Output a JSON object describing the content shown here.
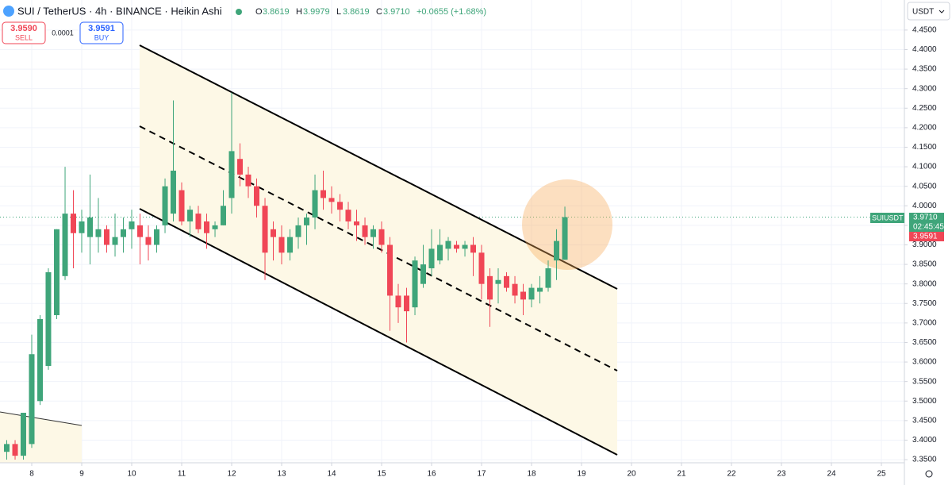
{
  "chart_data": {
    "type": "candlestick",
    "x": [
      7.5,
      7.667,
      7.833,
      8,
      8.167,
      8.333,
      8.5,
      8.667,
      8.833,
      9,
      9.167,
      9.333,
      9.5,
      9.667,
      9.833,
      10,
      10.167,
      10.333,
      10.5,
      10.667,
      10.833,
      11,
      11.167,
      11.333,
      11.5,
      11.667,
      11.833,
      12,
      12.167,
      12.333,
      12.5,
      12.667,
      12.833,
      13,
      13.167,
      13.333,
      13.5,
      13.667,
      13.833,
      14,
      14.167,
      14.333,
      14.5,
      14.667,
      14.833,
      15,
      15.167,
      15.333,
      15.5,
      15.667,
      15.833,
      16,
      16.167,
      16.333,
      16.5,
      16.667,
      16.833,
      17,
      17.167,
      17.333,
      17.5,
      17.667,
      17.833,
      18,
      18.167,
      18.333,
      18.5,
      18.667
    ],
    "open": [
      3.37,
      3.39,
      3.36,
      3.39,
      3.5,
      3.59,
      3.72,
      3.82,
      3.98,
      3.93,
      3.92,
      3.92,
      3.94,
      3.9,
      3.92,
      3.94,
      3.95,
      3.92,
      3.9,
      3.95,
      3.98,
      4.04,
      3.96,
      3.98,
      3.96,
      3.94,
      3.95,
      4.02,
      4.12,
      4.08,
      4.05,
      4.0,
      3.94,
      3.92,
      3.88,
      3.92,
      3.95,
      3.97,
      4.04,
      4.02,
      4.01,
      3.99,
      3.96,
      3.95,
      3.92,
      3.94,
      3.9,
      3.77,
      3.77,
      3.74,
      3.8,
      3.84,
      3.86,
      3.89,
      3.9,
      3.89,
      3.9,
      3.88,
      3.82,
      3.8,
      3.82,
      3.8,
      3.78,
      3.76,
      3.78,
      3.79,
      3.86,
      3.8619
    ],
    "high": [
      3.4,
      3.4,
      3.47,
      3.67,
      3.72,
      3.84,
      3.94,
      4.1,
      4.04,
      3.99,
      4.08,
      4.02,
      3.95,
      3.98,
      3.97,
      3.99,
      3.98,
      3.95,
      3.95,
      4.07,
      4.27,
      4.06,
      4.0,
      4.0,
      3.98,
      3.96,
      4.04,
      4.29,
      4.16,
      4.1,
      4.07,
      4.02,
      3.96,
      3.95,
      3.94,
      3.97,
      3.98,
      4.08,
      4.09,
      4.05,
      4.03,
      4.01,
      3.99,
      3.97,
      3.95,
      3.96,
      3.92,
      3.8,
      3.79,
      3.87,
      3.9,
      3.94,
      3.94,
      3.92,
      3.91,
      3.91,
      3.92,
      3.9,
      3.84,
      3.84,
      3.83,
      3.82,
      3.8,
      3.8,
      3.82,
      3.86,
      3.94,
      3.9979
    ],
    "low": [
      3.35,
      3.35,
      3.35,
      3.38,
      3.49,
      3.58,
      3.71,
      3.81,
      3.84,
      3.88,
      3.85,
      3.88,
      3.88,
      3.87,
      3.88,
      3.89,
      3.85,
      3.86,
      3.88,
      3.93,
      3.96,
      3.95,
      3.92,
      3.93,
      3.89,
      3.92,
      3.95,
      3.98,
      4.05,
      4.02,
      3.97,
      3.81,
      3.86,
      3.85,
      3.86,
      3.89,
      3.9,
      3.94,
      3.99,
      3.98,
      3.96,
      3.94,
      3.91,
      3.9,
      3.89,
      3.88,
      3.68,
      3.7,
      3.65,
      3.72,
      3.79,
      3.82,
      3.85,
      3.86,
      3.88,
      3.87,
      3.82,
      3.76,
      3.69,
      3.75,
      3.78,
      3.75,
      3.72,
      3.74,
      3.75,
      3.78,
      3.81,
      3.8619
    ],
    "close": [
      3.39,
      3.36,
      3.47,
      3.62,
      3.71,
      3.83,
      3.94,
      3.98,
      3.93,
      3.96,
      3.97,
      3.94,
      3.9,
      3.92,
      3.94,
      3.96,
      3.92,
      3.9,
      3.94,
      4.05,
      4.09,
      3.96,
      3.99,
      3.94,
      3.93,
      3.95,
      4.0,
      4.14,
      4.08,
      4.05,
      4.0,
      3.88,
      3.92,
      3.88,
      3.92,
      3.95,
      3.97,
      4.04,
      4.02,
      4.01,
      3.99,
      3.96,
      3.95,
      3.92,
      3.94,
      3.9,
      3.77,
      3.74,
      3.73,
      3.86,
      3.85,
      3.89,
      3.9,
      3.91,
      3.89,
      3.9,
      3.88,
      3.8,
      3.76,
      3.81,
      3.79,
      3.77,
      3.76,
      3.79,
      3.79,
      3.84,
      3.91,
      3.971
    ],
    "up_color": "#3fa57a",
    "down_color": "#f04656",
    "xlim": [
      7.365,
      25.46
    ],
    "xticks": [
      8,
      9,
      10,
      11,
      12,
      13,
      14,
      15,
      16,
      17,
      18,
      19,
      20,
      21,
      22,
      23,
      24,
      25
    ],
    "ylim": [
      3.342,
      4.527
    ],
    "yticks": [
      {
        "value": 3.35,
        "label": "3.3500"
      },
      {
        "value": 3.4,
        "label": "3.4000"
      },
      {
        "value": 3.45,
        "label": "3.4500"
      },
      {
        "value": 3.5,
        "label": "3.5000"
      },
      {
        "value": 3.55,
        "label": "3.5500"
      },
      {
        "value": 3.6,
        "label": "3.6000"
      },
      {
        "value": 3.65,
        "label": "3.6500"
      },
      {
        "value": 3.7,
        "label": "3.7000"
      },
      {
        "value": 3.75,
        "label": "3.7500"
      },
      {
        "value": 3.8,
        "label": "3.8000"
      },
      {
        "value": 3.85,
        "label": "3.8500"
      },
      {
        "value": 3.9,
        "label": "3.9000"
      },
      {
        "value": 3.95,
        "label": "3.9500"
      },
      {
        "value": 4.0,
        "label": "4.0000"
      },
      {
        "value": 4.05,
        "label": "4.0500"
      },
      {
        "value": 4.1,
        "label": "4.1000"
      },
      {
        "value": 4.15,
        "label": "4.1500"
      },
      {
        "value": 4.2,
        "label": "4.2000"
      },
      {
        "value": 4.25,
        "label": "4.2500"
      },
      {
        "value": 4.3,
        "label": "4.3000"
      },
      {
        "value": 4.35,
        "label": "4.3500"
      },
      {
        "value": 4.4,
        "label": "4.4000"
      },
      {
        "value": 4.45,
        "label": "4.4500"
      }
    ],
    "grid": true
  },
  "header": {
    "symbol": "SUI / TetherUS · 4h · BINANCE · Heikin Ashi",
    "ohlc": [
      {
        "key": "O",
        "value": "3.8619"
      },
      {
        "key": "H",
        "value": "3.9979"
      },
      {
        "key": "L",
        "value": "3.8619"
      },
      {
        "key": "C",
        "value": "3.9710"
      }
    ],
    "change": "+0.0655 (+1.68%)"
  },
  "order": {
    "sell": {
      "price": "3.9590",
      "label": "SELL"
    },
    "spread": "0.0001",
    "buy": {
      "price": "3.9591",
      "label": "BUY"
    }
  },
  "axis": {
    "currency": "USDT"
  },
  "price_tags": {
    "symbol": "SUIUSDT",
    "last": "3.9710",
    "countdown": "02:45:45",
    "bid": "3.9591"
  }
}
